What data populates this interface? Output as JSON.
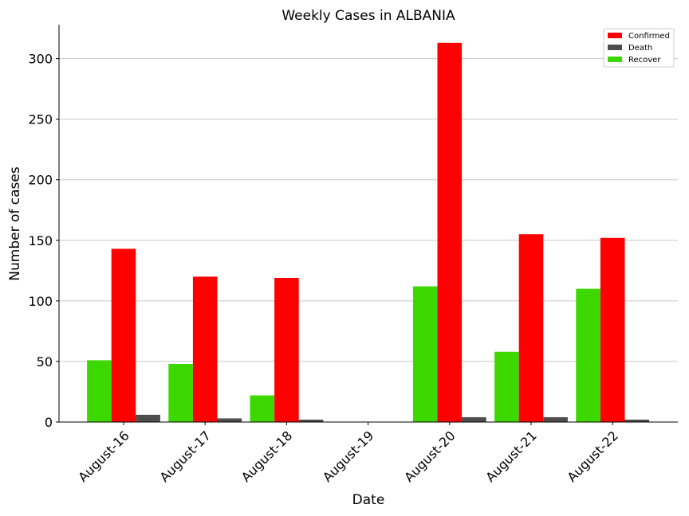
{
  "chart_data": {
    "type": "bar",
    "title": "Weekly Cases in ALBANIA",
    "xlabel": "Date",
    "ylabel": "Number of cases",
    "categories": [
      "August-16",
      "August-17",
      "August-18",
      "August-19",
      "August-20",
      "August-21",
      "August-22"
    ],
    "series": [
      {
        "name": "Recover",
        "color": "#3dd800",
        "values": [
          51,
          48,
          22,
          0,
          112,
          58,
          110
        ]
      },
      {
        "name": "Confirmed",
        "color": "#ff0000",
        "values": [
          143,
          120,
          119,
          0,
          313,
          155,
          152
        ]
      },
      {
        "name": "Death",
        "color": "#4d4d4d",
        "values": [
          6,
          3,
          2,
          0,
          4,
          4,
          2
        ]
      }
    ],
    "legend_order": [
      "Confirmed",
      "Death",
      "Recover"
    ],
    "ylim": [
      0,
      328
    ],
    "yticks": [
      0,
      50,
      100,
      150,
      200,
      250,
      300
    ],
    "grid": "horizontal",
    "legend_position": "top-right"
  }
}
